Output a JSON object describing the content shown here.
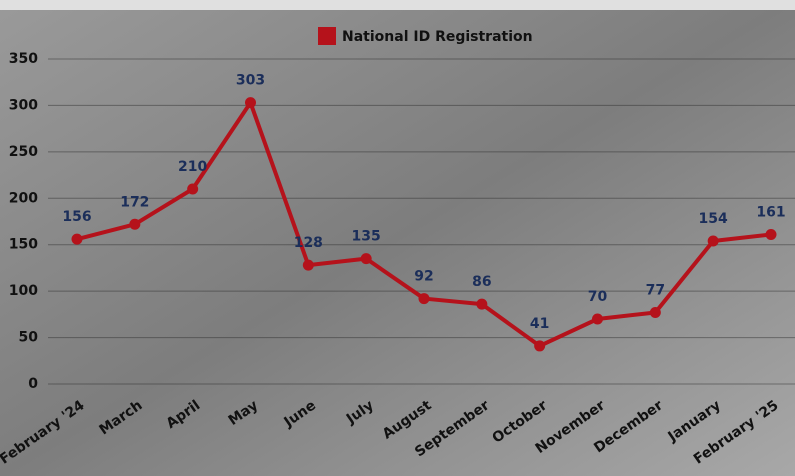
{
  "chart_data": {
    "type": "line",
    "categories": [
      "February '24",
      "March",
      "April",
      "May",
      "June",
      "July",
      "August",
      "September",
      "October",
      "November",
      "December",
      "January",
      "February '25"
    ],
    "series": [
      {
        "name": "National ID Registration",
        "color": "#b5121b",
        "values": [
          156,
          172,
          210,
          303,
          128,
          135,
          92,
          86,
          41,
          70,
          77,
          154,
          161
        ]
      }
    ],
    "ylim": [
      0,
      350
    ],
    "yticks": [
      0,
      50,
      100,
      150,
      200,
      250,
      300,
      350
    ],
    "grid": true,
    "legend": "top"
  }
}
